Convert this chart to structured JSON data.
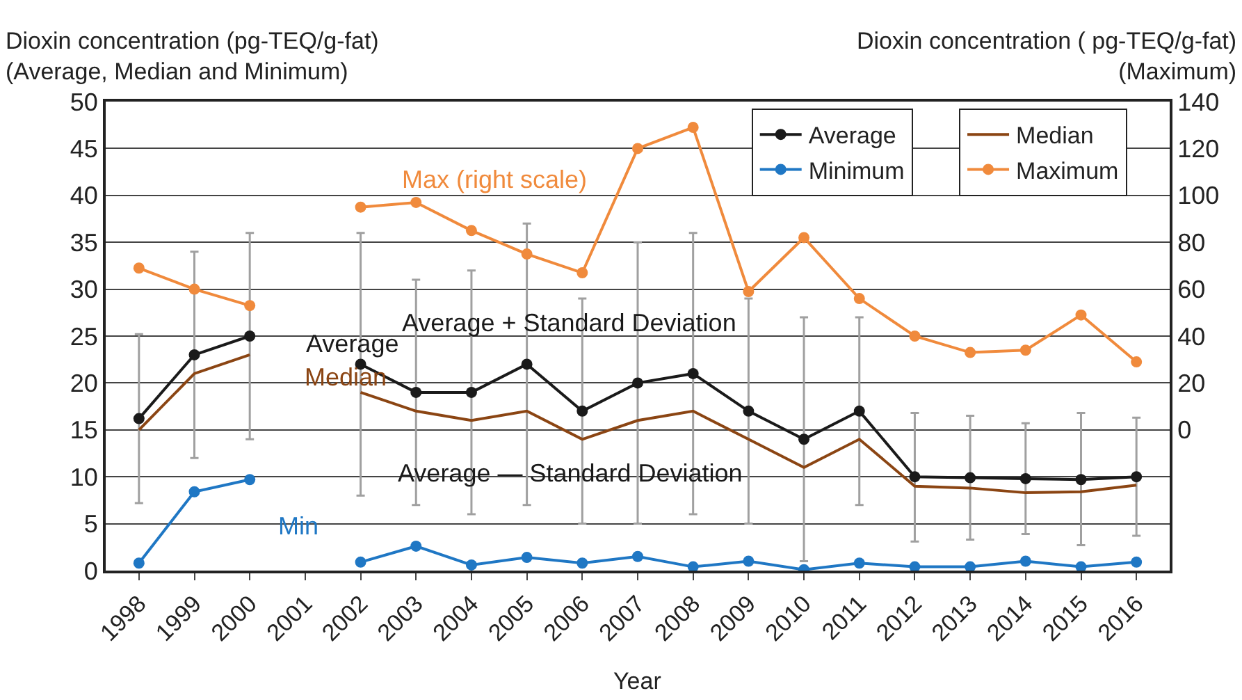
{
  "chart_data": {
    "type": "line",
    "ylabel": "Dioxin concentration (pg-TEQ/g-fat)\n(Average, Median and Minimum)",
    "y2label": "Dioxin concentration ( pg-TEQ/g-fat)\n(Maximum)",
    "xlabel": "Year",
    "categories": [
      "1998",
      "1999",
      "2000",
      "2001",
      "2002",
      "2003",
      "2004",
      "2005",
      "2006",
      "2007",
      "2008",
      "2009",
      "2010",
      "2011",
      "2012",
      "2013",
      "2014",
      "2015",
      "2016"
    ],
    "ylim": [
      0,
      50
    ],
    "yticks": [
      0,
      5,
      10,
      15,
      20,
      25,
      30,
      35,
      40,
      45,
      50
    ],
    "y2lim": [
      -60,
      140
    ],
    "y2ticks": [
      0,
      20,
      40,
      60,
      80,
      100,
      120,
      140
    ],
    "grid": "y",
    "legend": "top right",
    "marker": "circle",
    "series": [
      {
        "name": "Average",
        "color": "#1a1a1a",
        "values": [
          16.2,
          23,
          25,
          null,
          22,
          19,
          19,
          22,
          17,
          20,
          21,
          17,
          14,
          17,
          10,
          9.9,
          9.8,
          9.7,
          10
        ],
        "errors": [
          [
            7.2,
            25.2
          ],
          [
            12,
            34
          ],
          [
            14,
            36
          ],
          null,
          [
            8,
            36
          ],
          [
            7,
            31
          ],
          [
            6,
            32
          ],
          [
            7,
            37
          ],
          [
            5,
            29
          ],
          [
            5,
            35
          ],
          [
            6,
            36
          ],
          [
            5,
            29
          ],
          [
            1,
            27
          ],
          [
            7,
            27
          ],
          [
            3.1,
            16.8
          ],
          [
            3.3,
            16.5
          ],
          [
            3.9,
            15.7
          ],
          [
            2.7,
            16.8
          ],
          [
            3.7,
            16.3
          ]
        ]
      },
      {
        "name": "Median",
        "color": "#8b4513",
        "marker": "none",
        "values": [
          15,
          21,
          23,
          null,
          19,
          17,
          16,
          17,
          14,
          16,
          17,
          14,
          11,
          14,
          9,
          8.8,
          8.3,
          8.4,
          9.1
        ]
      },
      {
        "name": "Minimum",
        "color": "#1f77c4",
        "values": [
          0.8,
          8.4,
          9.7,
          null,
          0.9,
          2.6,
          0.6,
          1.4,
          0.8,
          1.5,
          0.4,
          1.0,
          0.1,
          0.8,
          0.4,
          0.4,
          1.0,
          0.4,
          0.9
        ]
      },
      {
        "name": "Maximum",
        "color": "#f08a3c",
        "axis": "y2",
        "values": [
          69,
          60,
          53,
          null,
          95,
          97,
          85,
          75,
          67,
          120,
          129,
          59,
          82,
          56,
          40,
          33,
          34,
          49,
          29
        ]
      }
    ],
    "annotations": [
      "Max (right scale)",
      "Average",
      "Median",
      "Average + Standard Deviation",
      "Average — Standard Deviation",
      "Min"
    ]
  }
}
